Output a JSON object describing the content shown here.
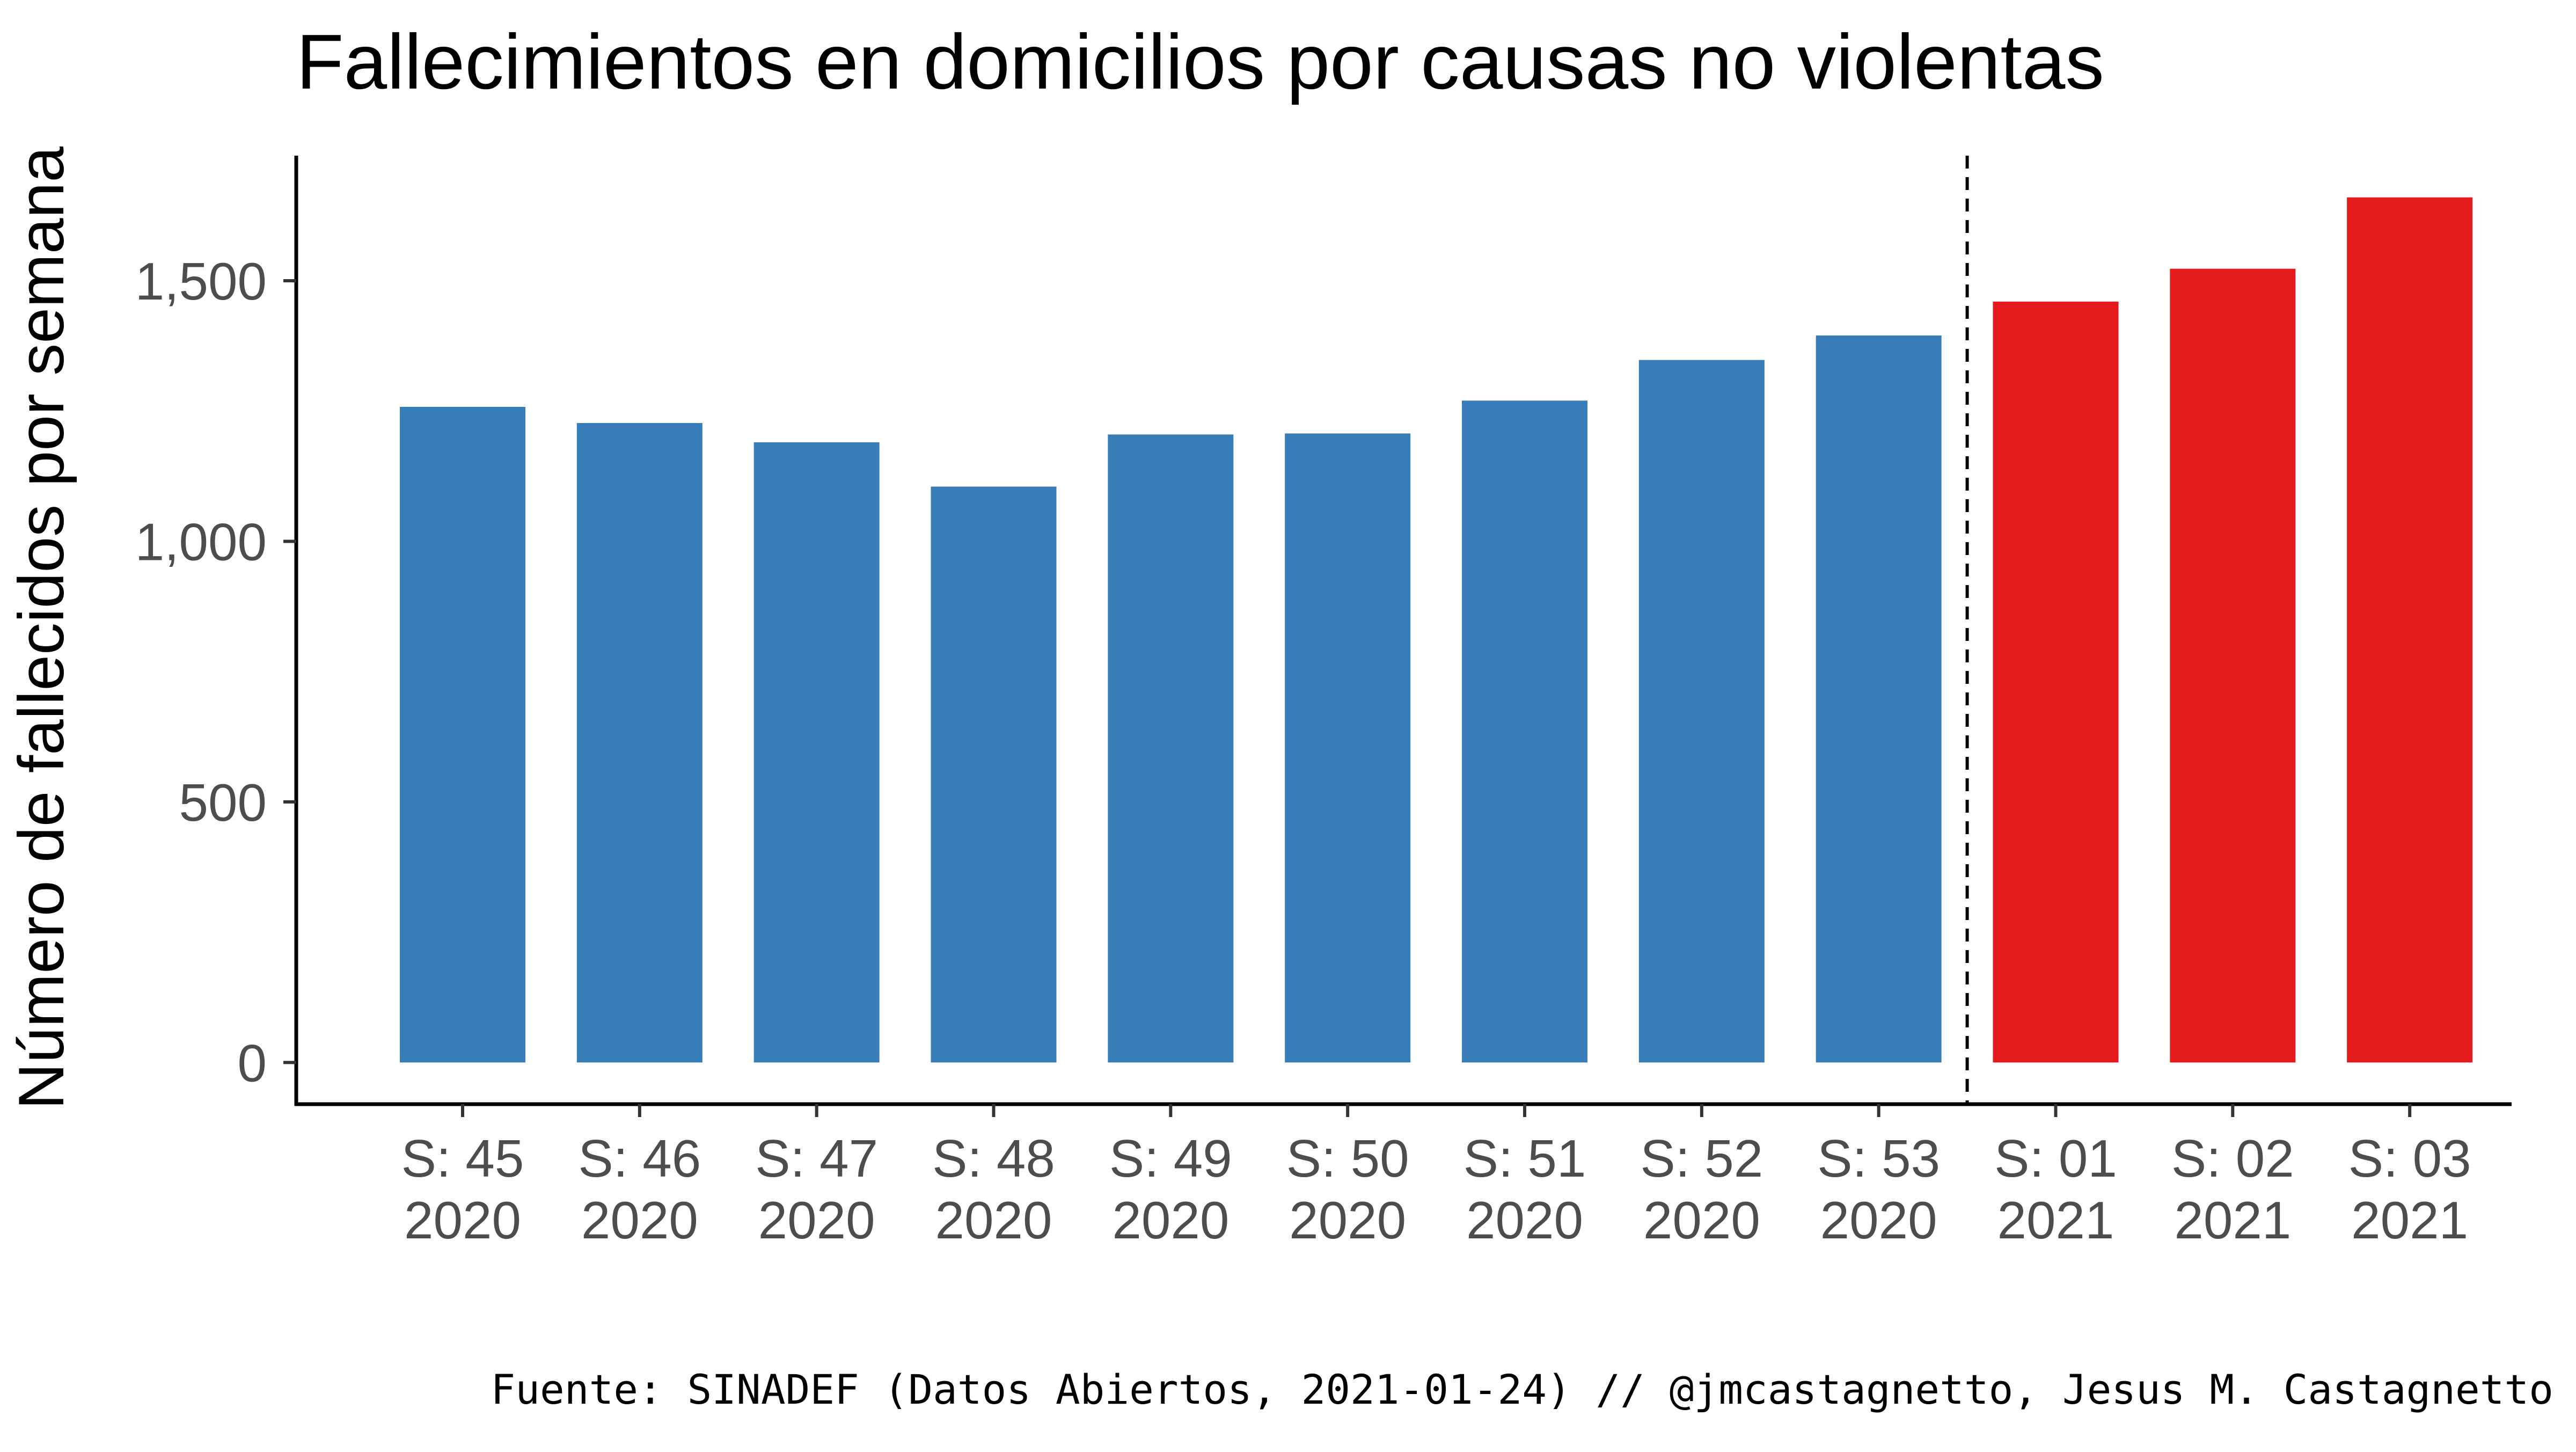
{
  "chart_data": {
    "type": "bar",
    "title": "Fallecimientos en domicilios por causas no violentas",
    "xlabel": "",
    "ylabel": "Número de fallecidos por semana",
    "caption": "Fuente: SINADEF (Datos Abiertos, 2021-01-24) // @jmcastagnetto, Jesus M. Castagnetto",
    "categories": [
      [
        "S: 45",
        "2020"
      ],
      [
        "S: 46",
        "2020"
      ],
      [
        "S: 47",
        "2020"
      ],
      [
        "S: 48",
        "2020"
      ],
      [
        "S: 49",
        "2020"
      ],
      [
        "S: 50",
        "2020"
      ],
      [
        "S: 51",
        "2020"
      ],
      [
        "S: 52",
        "2020"
      ],
      [
        "S: 53",
        "2020"
      ],
      [
        "S: 01",
        "2021"
      ],
      [
        "S: 02",
        "2021"
      ],
      [
        "S: 03",
        "2021"
      ]
    ],
    "values": [
      1258,
      1227,
      1190,
      1105,
      1205,
      1207,
      1270,
      1348,
      1395,
      1460,
      1523,
      1660
    ],
    "year_of_bar": [
      "2020",
      "2020",
      "2020",
      "2020",
      "2020",
      "2020",
      "2020",
      "2020",
      "2020",
      "2021",
      "2021",
      "2021"
    ],
    "colors": {
      "2020": "#377eb8",
      "2021": "#e41a1c"
    },
    "y_ticks": [
      0,
      500,
      1000,
      1500
    ],
    "y_tick_labels": [
      "0",
      "500",
      "1,000",
      "1,500"
    ],
    "ylim": [
      -80,
      1740
    ],
    "divider_after_category": "S: 53 2020",
    "divider_style": "dashed",
    "grid": false,
    "legend": "none"
  }
}
